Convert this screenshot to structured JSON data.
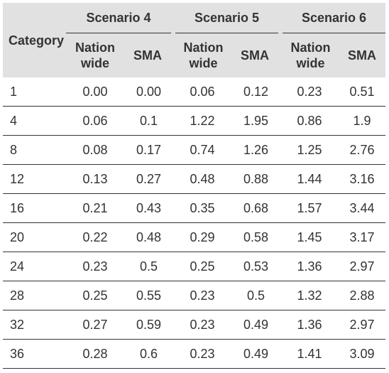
{
  "table": {
    "header": {
      "category": "Category",
      "groups": [
        "Scenario 4",
        "Scenario 5",
        "Scenario 6"
      ],
      "sub_nation_line1": "Nation",
      "sub_nation_line2": "wide",
      "sub_sma": "SMA"
    },
    "rows": [
      {
        "category": "1",
        "values": [
          "0.00",
          "0.00",
          "0.06",
          "0.12",
          "0.23",
          "0.51"
        ]
      },
      {
        "category": "4",
        "values": [
          "0.06",
          "0.1",
          "1.22",
          "1.95",
          "0.86",
          "1.9"
        ]
      },
      {
        "category": "8",
        "values": [
          "0.08",
          "0.17",
          "0.74",
          "1.26",
          "1.25",
          "2.76"
        ]
      },
      {
        "category": "12",
        "values": [
          "0.13",
          "0.27",
          "0.48",
          "0.88",
          "1.44",
          "3.16"
        ]
      },
      {
        "category": "16",
        "values": [
          "0.21",
          "0.43",
          "0.35",
          "0.68",
          "1.57",
          "3.44"
        ]
      },
      {
        "category": "20",
        "values": [
          "0.22",
          "0.48",
          "0.29",
          "0.58",
          "1.45",
          "3.17"
        ]
      },
      {
        "category": "24",
        "values": [
          "0.23",
          "0.5",
          "0.25",
          "0.53",
          "1.36",
          "2.97"
        ]
      },
      {
        "category": "28",
        "values": [
          "0.25",
          "0.55",
          "0.23",
          "0.5",
          "1.32",
          "2.88"
        ]
      },
      {
        "category": "32",
        "values": [
          "0.27",
          "0.59",
          "0.23",
          "0.49",
          "1.36",
          "2.97"
        ]
      },
      {
        "category": "36",
        "values": [
          "0.28",
          "0.6",
          "0.23",
          "0.49",
          "1.41",
          "3.09"
        ]
      }
    ]
  }
}
